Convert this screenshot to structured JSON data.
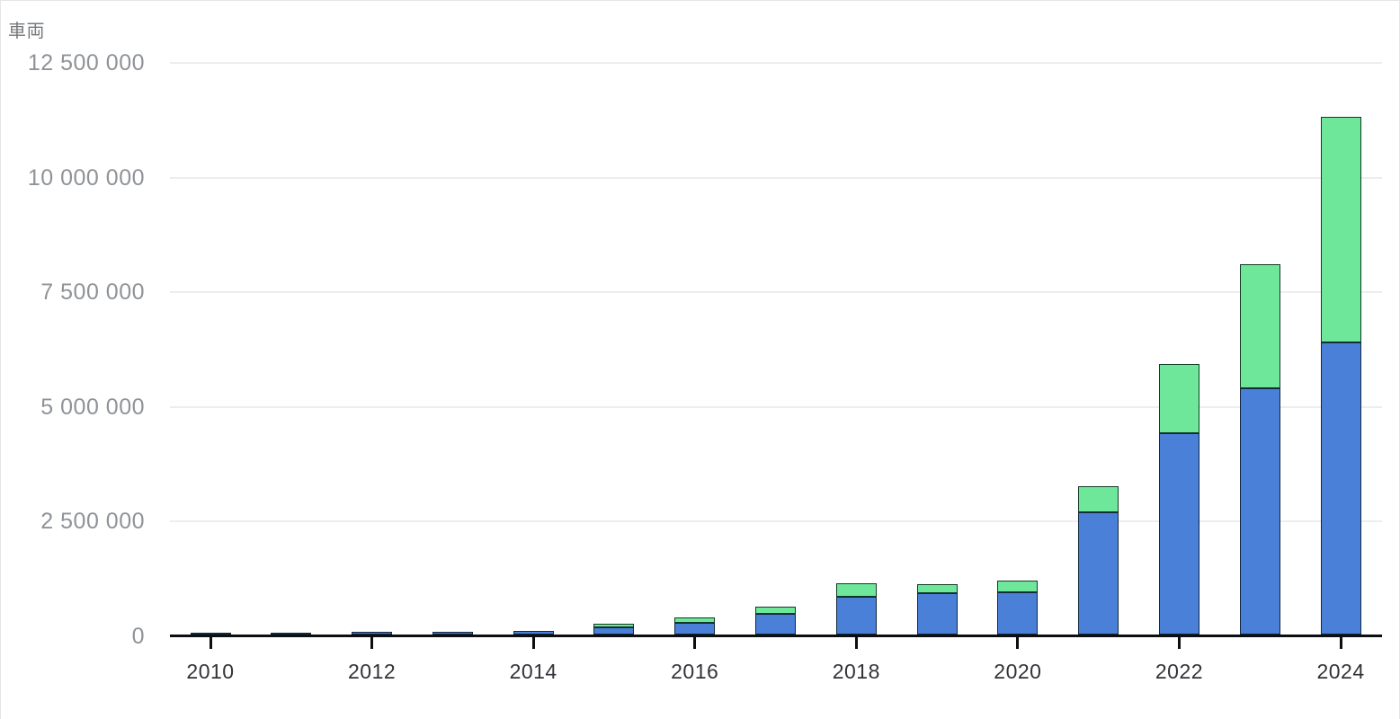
{
  "chart": {
    "unit_label": "車両",
    "background_color": "#ffffff",
    "gridline_color": "#ededee",
    "axis_color": "#0c0e11",
    "y_label_color": "#8f9397",
    "x_label_color": "#303338",
    "unit_label_color": "#75787c"
  },
  "chart_data": {
    "type": "bar",
    "stacked": true,
    "title": "",
    "ylabel": "車両",
    "xlabel": "",
    "ylim": [
      0,
      12500000
    ],
    "grid": "horizontal",
    "legend": "none",
    "categories": [
      "2010",
      "2011",
      "2012",
      "2013",
      "2014",
      "2015",
      "2016",
      "2017",
      "2018",
      "2019",
      "2020",
      "2021",
      "2022",
      "2023",
      "2024"
    ],
    "labeled_years": [
      "2010",
      "2012",
      "2014",
      "2016",
      "2018",
      "2020",
      "2022",
      "2024"
    ],
    "y_ticks": [
      {
        "value": 0,
        "label": "0"
      },
      {
        "value": 2500000,
        "label": "2 500 000"
      },
      {
        "value": 5000000,
        "label": "5 000 000"
      },
      {
        "value": 7500000,
        "label": "7 500 000"
      },
      {
        "value": 10000000,
        "label": "10 000 000"
      },
      {
        "value": 12500000,
        "label": "12 500 000"
      }
    ],
    "series": [
      {
        "name": "series-1-blue",
        "color": "#4a80d8",
        "stroke": "#12283c",
        "values": [
          40000,
          40000,
          50000,
          50000,
          85000,
          165000,
          260000,
          460000,
          820000,
          895000,
          930000,
          2660000,
          4380000,
          5370000,
          6360000
        ]
      },
      {
        "name": "series-2-green",
        "color": "#6fe79a",
        "stroke": "#123a26",
        "values": [
          0,
          0,
          0,
          0,
          0,
          75000,
          120000,
          145000,
          300000,
          210000,
          240000,
          580000,
          1520000,
          2700000,
          4920000
        ]
      }
    ]
  }
}
